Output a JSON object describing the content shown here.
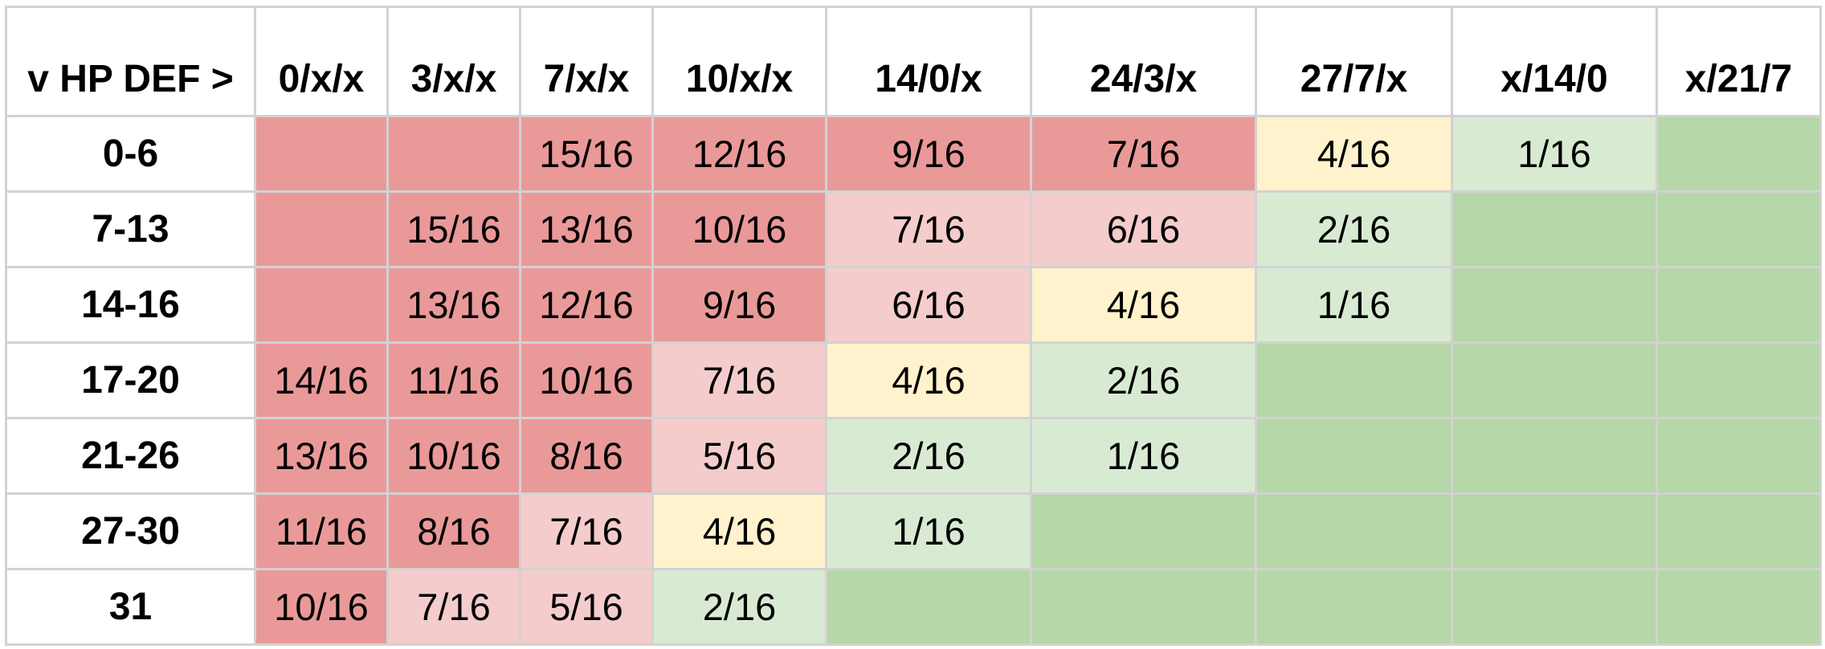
{
  "table": {
    "headers": [
      "v HP DEF >",
      "0/x/x",
      "3/x/x",
      "7/x/x",
      "10/x/x",
      "14/0/x",
      "24/3/x",
      "27/7/x",
      "x/14/0",
      "x/21/7"
    ],
    "colors": {
      "red": "#ea9999",
      "pink": "#f4cccc",
      "yellow": "#fff2cc",
      "light_green": "#d9ead3",
      "green": "#b6d7a8",
      "grid": "#d2d2d2"
    },
    "rows": [
      {
        "label": "0-6",
        "cells": [
          {
            "text": "",
            "color": "red"
          },
          {
            "text": "",
            "color": "red"
          },
          {
            "text": "15/16",
            "color": "red"
          },
          {
            "text": "12/16",
            "color": "red"
          },
          {
            "text": "9/16",
            "color": "red"
          },
          {
            "text": "7/16",
            "color": "red"
          },
          {
            "text": "4/16",
            "color": "yellow"
          },
          {
            "text": "1/16",
            "color": "light_green"
          },
          {
            "text": "",
            "color": "green"
          }
        ]
      },
      {
        "label": "7-13",
        "cells": [
          {
            "text": "",
            "color": "red"
          },
          {
            "text": "15/16",
            "color": "red"
          },
          {
            "text": "13/16",
            "color": "red"
          },
          {
            "text": "10/16",
            "color": "red"
          },
          {
            "text": "7/16",
            "color": "pink"
          },
          {
            "text": "6/16",
            "color": "pink"
          },
          {
            "text": "2/16",
            "color": "light_green"
          },
          {
            "text": "",
            "color": "green"
          },
          {
            "text": "",
            "color": "green"
          }
        ]
      },
      {
        "label": "14-16",
        "cells": [
          {
            "text": "",
            "color": "red"
          },
          {
            "text": "13/16",
            "color": "red"
          },
          {
            "text": "12/16",
            "color": "red"
          },
          {
            "text": "9/16",
            "color": "red"
          },
          {
            "text": "6/16",
            "color": "pink"
          },
          {
            "text": "4/16",
            "color": "yellow"
          },
          {
            "text": "1/16",
            "color": "light_green"
          },
          {
            "text": "",
            "color": "green"
          },
          {
            "text": "",
            "color": "green"
          }
        ]
      },
      {
        "label": "17-20",
        "cells": [
          {
            "text": "14/16",
            "color": "red"
          },
          {
            "text": "11/16",
            "color": "red"
          },
          {
            "text": "10/16",
            "color": "red"
          },
          {
            "text": "7/16",
            "color": "pink"
          },
          {
            "text": "4/16",
            "color": "yellow"
          },
          {
            "text": "2/16",
            "color": "light_green"
          },
          {
            "text": "",
            "color": "green"
          },
          {
            "text": "",
            "color": "green"
          },
          {
            "text": "",
            "color": "green"
          }
        ]
      },
      {
        "label": "21-26",
        "cells": [
          {
            "text": "13/16",
            "color": "red"
          },
          {
            "text": "10/16",
            "color": "red"
          },
          {
            "text": "8/16",
            "color": "red"
          },
          {
            "text": "5/16",
            "color": "pink"
          },
          {
            "text": "2/16",
            "color": "light_green"
          },
          {
            "text": "1/16",
            "color": "light_green"
          },
          {
            "text": "",
            "color": "green"
          },
          {
            "text": "",
            "color": "green"
          },
          {
            "text": "",
            "color": "green"
          }
        ]
      },
      {
        "label": "27-30",
        "cells": [
          {
            "text": "11/16",
            "color": "red"
          },
          {
            "text": "8/16",
            "color": "red"
          },
          {
            "text": "7/16",
            "color": "pink"
          },
          {
            "text": "4/16",
            "color": "yellow"
          },
          {
            "text": "1/16",
            "color": "light_green"
          },
          {
            "text": "",
            "color": "green"
          },
          {
            "text": "",
            "color": "green"
          },
          {
            "text": "",
            "color": "green"
          },
          {
            "text": "",
            "color": "green"
          }
        ]
      },
      {
        "label": "31",
        "cells": [
          {
            "text": "10/16",
            "color": "red"
          },
          {
            "text": "7/16",
            "color": "pink"
          },
          {
            "text": "5/16",
            "color": "pink"
          },
          {
            "text": "2/16",
            "color": "light_green"
          },
          {
            "text": "",
            "color": "green"
          },
          {
            "text": "",
            "color": "green"
          },
          {
            "text": "",
            "color": "green"
          },
          {
            "text": "",
            "color": "green"
          },
          {
            "text": "",
            "color": "green"
          }
        ]
      }
    ]
  }
}
